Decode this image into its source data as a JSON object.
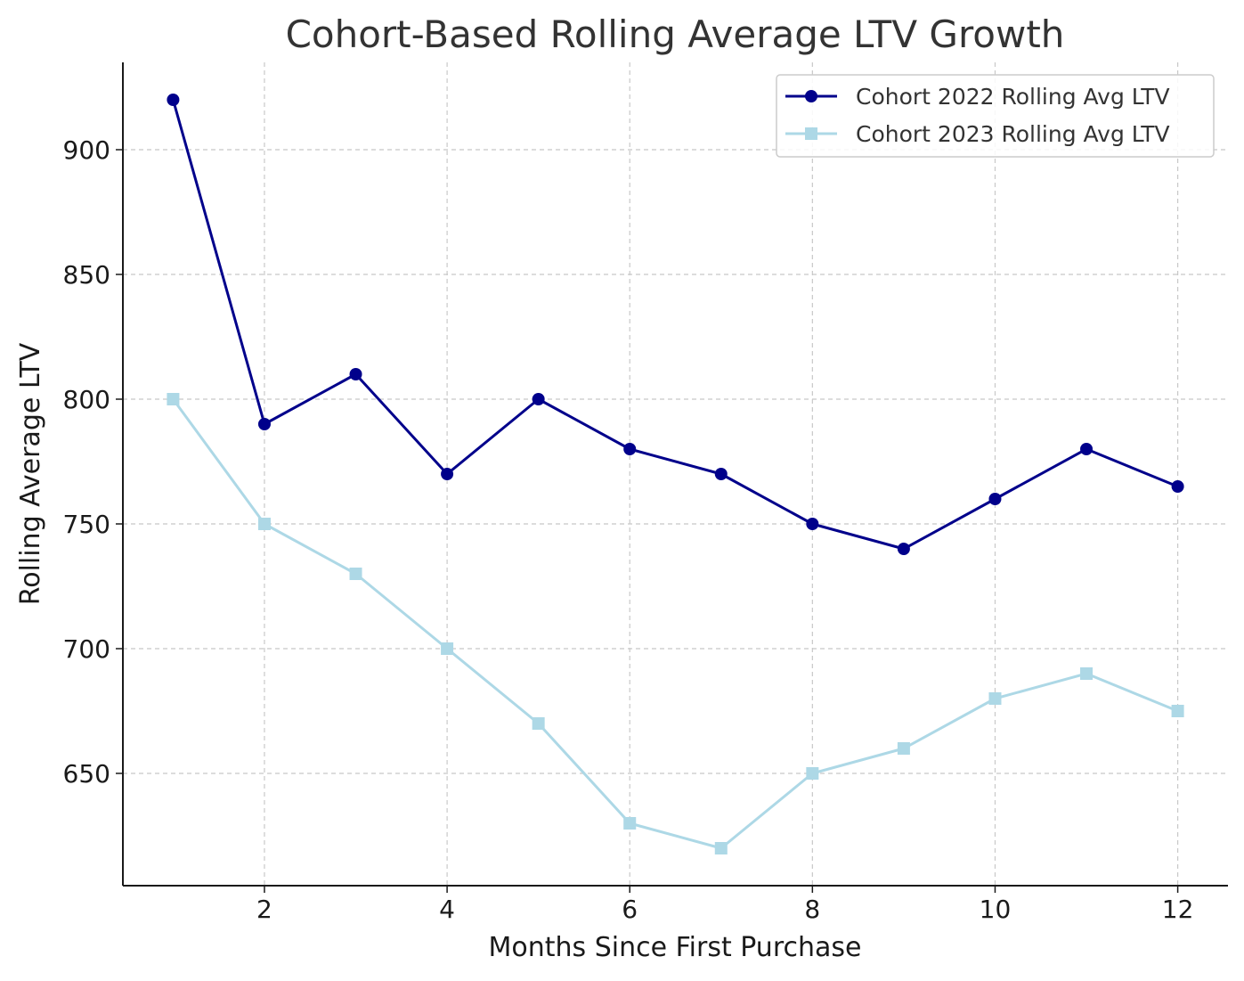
{
  "chart_data": {
    "type": "line",
    "title": "Cohort-Based Rolling Average LTV Growth",
    "xlabel": "Months Since First Purchase",
    "ylabel": "Rolling Average LTV",
    "x": [
      1,
      2,
      3,
      4,
      5,
      6,
      7,
      8,
      9,
      10,
      11,
      12
    ],
    "xticks": [
      2,
      4,
      6,
      8,
      10,
      12
    ],
    "yticks": [
      650,
      700,
      750,
      800,
      850,
      900
    ],
    "xlim": [
      0.45,
      12.55
    ],
    "ylim": [
      605,
      935
    ],
    "grid": true,
    "legend_position": "top-right",
    "series": [
      {
        "name": "Cohort 2022 Rolling Avg LTV",
        "color": "#00008b",
        "marker": "circle",
        "values": [
          920,
          790,
          810,
          770,
          800,
          780,
          770,
          750,
          740,
          760,
          780,
          765
        ]
      },
      {
        "name": "Cohort 2023 Rolling Avg LTV",
        "color": "#add8e6",
        "marker": "square",
        "values": [
          800,
          750,
          730,
          700,
          670,
          630,
          620,
          650,
          660,
          680,
          690,
          675
        ]
      }
    ]
  }
}
